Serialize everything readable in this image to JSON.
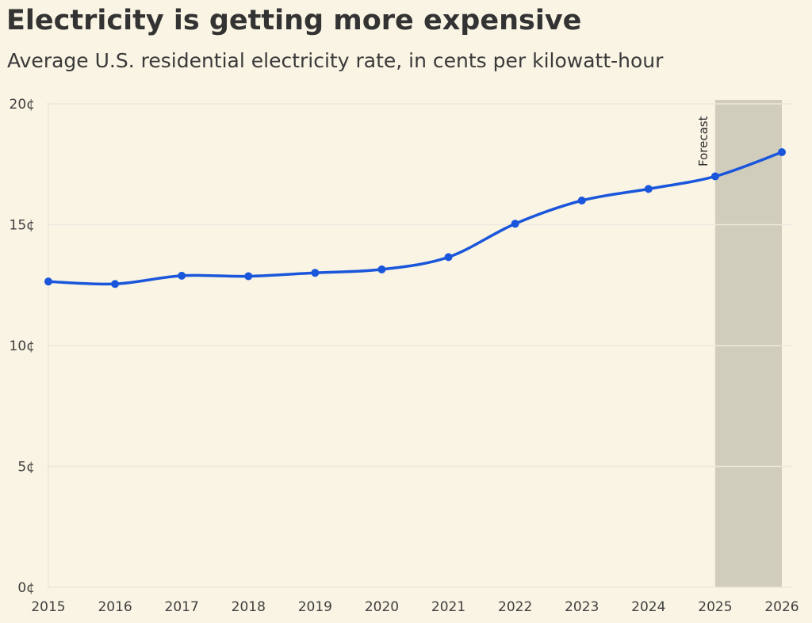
{
  "chart_data": {
    "type": "line",
    "title": "Electricity is getting more expensive",
    "subtitle": "Average U.S. residential electricity rate, in cents per kilowatt-hour",
    "x": [
      "2015",
      "2016",
      "2017",
      "2018",
      "2019",
      "2020",
      "2021",
      "2022",
      "2023",
      "2024",
      "2025",
      "2026"
    ],
    "series": [
      {
        "values": [
          12.65,
          12.55,
          12.89,
          12.87,
          13.01,
          13.15,
          13.66,
          15.04,
          16.0,
          16.48,
          17.0,
          18.0
        ]
      }
    ],
    "ylim": [
      0,
      20
    ],
    "yticks": [
      "0¢",
      "5¢",
      "10¢",
      "15¢",
      "20¢"
    ],
    "ytick_values": [
      0,
      5,
      10,
      15,
      20
    ],
    "grid": true,
    "forecast_region": {
      "start": "2025",
      "end": "2026",
      "label": "Forecast"
    },
    "colors": {
      "line": "#1a56db",
      "forecast_band": "#d1cdbd",
      "background": "#f9f4e3",
      "grid": "#ece8de"
    }
  }
}
